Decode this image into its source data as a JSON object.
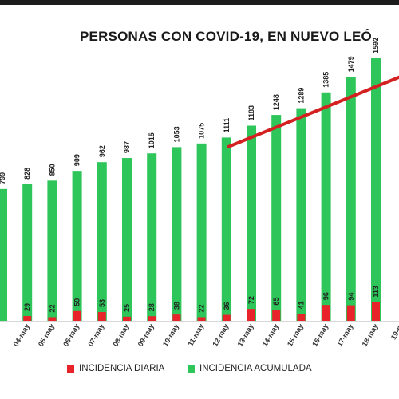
{
  "chart_data": {
    "type": "bar",
    "title": "PERSONAS CON COVID-19, EN NUEVO LEÓ",
    "categories": [
      "",
      "04-may",
      "05-may",
      "06-may",
      "07-may",
      "08-may",
      "09-may",
      "10-may",
      "11-may",
      "12-may",
      "13-may",
      "14-may",
      "15-may",
      "16-may",
      "17-may",
      "18-may",
      "19-m"
    ],
    "series": [
      {
        "name": "INCIDENCIA DIARIA",
        "color": "#e8242a",
        "values": [
          null,
          29,
          22,
          59,
          53,
          25,
          28,
          38,
          22,
          36,
          72,
          65,
          41,
          96,
          94,
          113,
          null
        ],
        "labels": [
          "",
          "29",
          "22",
          "59",
          "53",
          "25",
          "28",
          "38",
          "22",
          "36",
          "72",
          "65",
          "41",
          "96",
          "94",
          "113",
          ""
        ]
      },
      {
        "name": "INCIDENCIA ACUMULADA",
        "color": "#2ec65a",
        "values": [
          799,
          828,
          850,
          909,
          962,
          987,
          1015,
          1053,
          1075,
          1111,
          1183,
          1248,
          1289,
          1385,
          1479,
          1592,
          null
        ],
        "labels": [
          "799",
          "828",
          "850",
          "909",
          "962",
          "987",
          "1015",
          "1053",
          "1075",
          "1111",
          "1183",
          "1248",
          "1289",
          "1385",
          "1479",
          "1592",
          ""
        ]
      }
    ],
    "ylim": [
      0,
      1800
    ],
    "grid": false,
    "legend_position": "bottom",
    "trend_line_color": "#d42020"
  },
  "legend": {
    "daily": "INCIDENCIA DIARIA",
    "cumulative": "INCIDENCIA ACUMULADA"
  }
}
